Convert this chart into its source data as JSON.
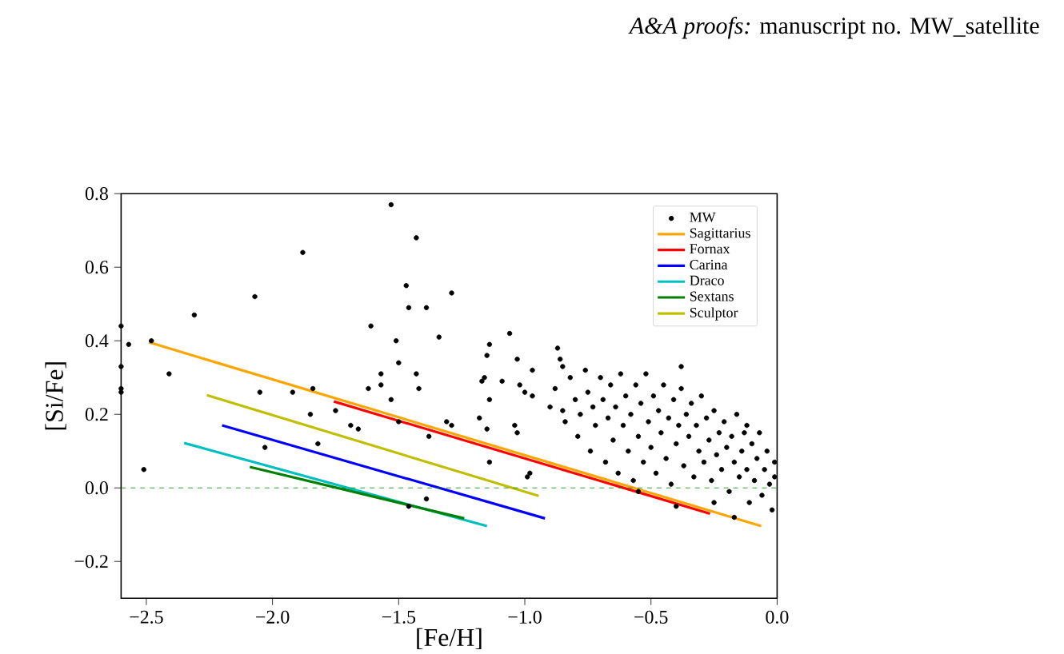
{
  "chart_data": {
    "type": "scatter",
    "xlabel": "[Fe/H]",
    "ylabel": "[Si/Fe]",
    "annotations": [
      "*A&A proofs:* manuscript no. MW_satellite"
    ],
    "xlim": [
      -2.6,
      0.0
    ],
    "ylim": [
      -0.3,
      0.8
    ],
    "xticks": [
      {
        "value": -2.5,
        "label": "−2.5"
      },
      {
        "value": -2.0,
        "label": "−2.0"
      },
      {
        "value": -1.5,
        "label": "−1.5"
      },
      {
        "value": -1.0,
        "label": "−1.0"
      },
      {
        "value": -0.5,
        "label": "−0.5"
      },
      {
        "value": 0.0,
        "label": "0.0"
      }
    ],
    "yticks": [
      {
        "value": -0.2,
        "label": "−0.2"
      },
      {
        "value": 0.0,
        "label": "0.0"
      },
      {
        "value": 0.2,
        "label": "0.2"
      },
      {
        "value": 0.4,
        "label": "0.4"
      },
      {
        "value": 0.6,
        "label": "0.6"
      },
      {
        "value": 0.8,
        "label": "0.8"
      }
    ],
    "grid": false,
    "legend": "top right",
    "ref_lines": [
      {
        "axis": "y",
        "value": 0.0,
        "color": "#008000",
        "line_style": "dashed"
      }
    ],
    "series": [
      {
        "name": "MW",
        "marker": "circle",
        "color": "#000000",
        "x": [
          -2.6,
          -2.6,
          -2.6,
          -2.6,
          -2.57,
          -2.48,
          -2.51,
          -2.41,
          -2.31,
          -2.07,
          -2.05,
          -2.03,
          -1.92,
          -1.88,
          -1.85,
          -1.84,
          -1.82,
          -1.75,
          -1.69,
          -1.66,
          -1.62,
          -1.61,
          -1.57,
          -1.57,
          -1.53,
          -1.53,
          -1.51,
          -1.5,
          -1.5,
          -1.47,
          -1.46,
          -1.46,
          -1.43,
          -1.43,
          -1.42,
          -1.39,
          -1.39,
          -1.29,
          -1.34,
          -1.31,
          -1.29,
          -1.38,
          -1.17,
          -1.16,
          -1.15,
          -1.14,
          -1.06,
          -1.03,
          -1.09,
          -1.14,
          -1.18,
          -1.15,
          -1.14,
          -1.04,
          -1.03,
          -0.99,
          -0.98,
          -0.97,
          -1.02,
          -1.0,
          -0.97,
          -0.87,
          -0.86,
          -0.85,
          -0.9,
          -0.88,
          -0.85,
          -0.84,
          -0.82,
          -0.8,
          -0.79,
          -0.78,
          -0.76,
          -0.75,
          -0.74,
          -0.73,
          -0.72,
          -0.7,
          -0.69,
          -0.68,
          -0.67,
          -0.66,
          -0.65,
          -0.64,
          -0.63,
          -0.62,
          -0.61,
          -0.6,
          -0.59,
          -0.58,
          -0.57,
          -0.56,
          -0.55,
          -0.54,
          -0.53,
          -0.52,
          -0.51,
          -0.5,
          -0.49,
          -0.48,
          -0.47,
          -0.46,
          -0.45,
          -0.44,
          -0.43,
          -0.42,
          -0.41,
          -0.4,
          -0.39,
          -0.38,
          -0.37,
          -0.36,
          -0.35,
          -0.34,
          -0.33,
          -0.32,
          -0.31,
          -0.3,
          -0.29,
          -0.28,
          -0.27,
          -0.26,
          -0.25,
          -0.24,
          -0.23,
          -0.22,
          -0.21,
          -0.2,
          -0.19,
          -0.18,
          -0.17,
          -0.16,
          -0.15,
          -0.14,
          -0.13,
          -0.12,
          -0.11,
          -0.1,
          -0.09,
          -0.08,
          -0.07,
          -0.06,
          -0.05,
          -0.04,
          -0.03,
          -0.02,
          -0.01,
          -0.01,
          -0.4,
          -0.25,
          -0.17,
          -0.38,
          -0.12,
          -0.55
        ],
        "values": [
          0.44,
          0.33,
          0.27,
          0.26,
          0.39,
          0.4,
          0.05,
          0.31,
          0.47,
          0.52,
          0.26,
          0.11,
          0.26,
          0.64,
          0.2,
          0.27,
          0.12,
          0.21,
          0.17,
          0.16,
          0.27,
          0.44,
          0.31,
          0.28,
          0.77,
          0.24,
          0.4,
          0.34,
          0.18,
          0.55,
          0.49,
          -0.05,
          0.68,
          0.31,
          0.27,
          0.49,
          -0.03,
          0.53,
          0.41,
          0.18,
          0.17,
          0.14,
          0.29,
          0.3,
          0.36,
          0.39,
          0.42,
          0.35,
          0.29,
          0.24,
          0.19,
          0.16,
          0.07,
          0.17,
          0.15,
          0.03,
          0.04,
          0.32,
          0.28,
          0.26,
          0.25,
          0.38,
          0.35,
          0.33,
          0.22,
          0.27,
          0.21,
          0.18,
          0.3,
          0.24,
          0.14,
          0.2,
          0.32,
          0.26,
          0.1,
          0.22,
          0.17,
          0.3,
          0.24,
          0.07,
          0.19,
          0.28,
          0.13,
          0.22,
          0.04,
          0.31,
          0.17,
          0.25,
          0.1,
          0.2,
          0.02,
          0.28,
          0.14,
          0.23,
          0.07,
          0.31,
          0.18,
          0.11,
          0.25,
          0.04,
          0.21,
          0.15,
          0.28,
          0.08,
          0.19,
          0.01,
          0.24,
          0.12,
          0.17,
          0.27,
          0.06,
          0.2,
          0.14,
          0.23,
          0.03,
          0.17,
          0.1,
          0.25,
          0.07,
          0.19,
          0.13,
          0.02,
          0.21,
          0.09,
          0.15,
          0.05,
          0.18,
          0.11,
          -0.01,
          0.14,
          0.07,
          0.2,
          0.03,
          0.1,
          0.15,
          0.05,
          -0.04,
          0.12,
          0.02,
          0.08,
          0.15,
          -0.02,
          0.05,
          0.1,
          0.01,
          -0.06,
          0.07,
          0.03,
          -0.05,
          -0.04,
          -0.08,
          0.33,
          0.17,
          -0.01
        ]
      },
      {
        "name": "Sagittarius",
        "type": "line",
        "color": "#ffa500",
        "x": [
          -2.49,
          -0.063
        ],
        "values": [
          0.396,
          -0.104
        ]
      },
      {
        "name": "Fornax",
        "type": "line",
        "color": "#ff0000",
        "x": [
          -1.757,
          -0.266
        ],
        "values": [
          0.235,
          -0.07
        ]
      },
      {
        "name": "Carina",
        "type": "line",
        "color": "#0000ff",
        "x": [
          -2.2,
          -0.92
        ],
        "values": [
          0.17,
          -0.083
        ]
      },
      {
        "name": "Draco",
        "type": "line",
        "color": "#00bfbf",
        "x": [
          -2.35,
          -1.15
        ],
        "values": [
          0.122,
          -0.104
        ]
      },
      {
        "name": "Sextans",
        "type": "line",
        "color": "#008000",
        "x": [
          -2.09,
          -1.24
        ],
        "values": [
          0.057,
          -0.083
        ]
      },
      {
        "name": "Sculptor",
        "type": "line",
        "color": "#bfbf00",
        "x": [
          -2.26,
          -0.945
        ],
        "values": [
          0.252,
          -0.022
        ]
      }
    ]
  }
}
